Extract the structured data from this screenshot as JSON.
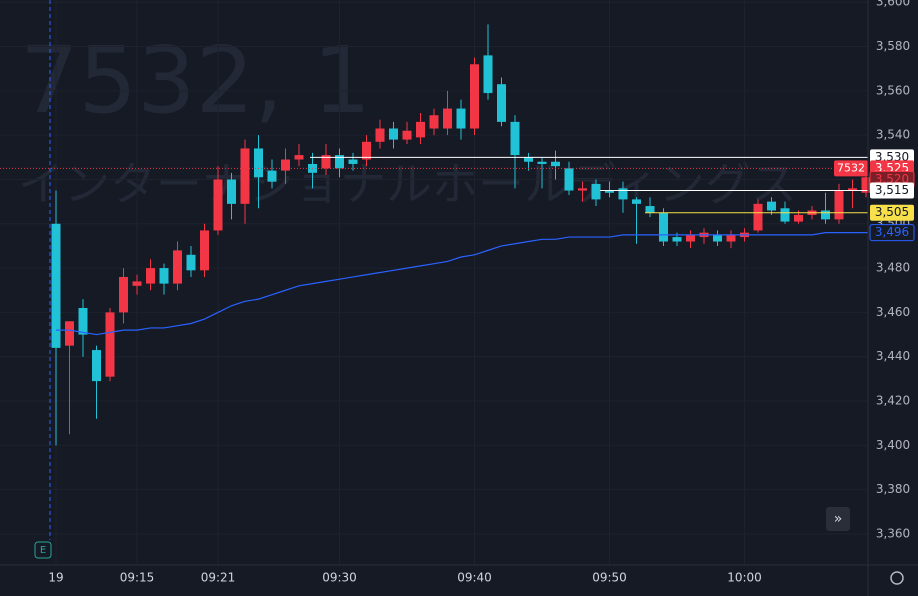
{
  "chart_data": {
    "type": "candlestick",
    "watermark": {
      "symbol": "7532, 1",
      "name": "インターナショナルホールディングス"
    },
    "categories": [
      "19",
      null,
      null,
      null,
      null,
      null,
      "09:15",
      null,
      null,
      null,
      null,
      null,
      "09:21",
      null,
      null,
      null,
      null,
      null,
      null,
      null,
      null,
      "09:30",
      null,
      null,
      null,
      null,
      null,
      null,
      null,
      null,
      null,
      "09:40",
      null,
      null,
      null,
      null,
      null,
      null,
      null,
      null,
      null,
      "09:50",
      null,
      null,
      null,
      null,
      null,
      null,
      null,
      null,
      null,
      "10:00",
      null,
      null,
      null,
      null,
      null,
      null,
      null,
      null,
      null
    ],
    "open": [
      3500,
      3445,
      3462,
      3443,
      3431,
      3460,
      3472,
      3473,
      3480,
      3473,
      3486,
      3479,
      3497,
      3520,
      3509,
      3534,
      3524,
      3524,
      3529,
      3527,
      3525,
      3531,
      3529,
      3529,
      3537,
      3543,
      3538,
      3539,
      3543,
      3543,
      3552,
      3543,
      3576,
      3563,
      3546,
      3530,
      3528,
      3528,
      3525,
      3515,
      3518,
      3515,
      3516,
      3511,
      3508,
      3505,
      3494,
      3492,
      3494,
      3495,
      3492,
      3494,
      3497,
      3510,
      3507,
      3501,
      3504,
      3506,
      3502,
      3515,
      3514
    ],
    "high": [
      3515,
      3456,
      3466,
      3445,
      3462,
      3480,
      3477,
      3484,
      3482,
      3492,
      3490,
      3500,
      3526,
      3523,
      3538,
      3540,
      3529,
      3534,
      3536,
      3532,
      3536,
      3534,
      3532,
      3540,
      3547,
      3546,
      3546,
      3550,
      3552,
      3560,
      3556,
      3575,
      3590,
      3566,
      3549,
      3532,
      3530,
      3533,
      3528,
      3519,
      3520,
      3519,
      3519,
      3512,
      3512,
      3507,
      3496,
      3497,
      3498,
      3497,
      3497,
      3498,
      3511,
      3512,
      3510,
      3506,
      3508,
      3514,
      3518,
      3520,
      3525
    ],
    "low": [
      3400,
      3405,
      3440,
      3412,
      3429,
      3455,
      3468,
      3470,
      3468,
      3470,
      3476,
      3476,
      3495,
      3502,
      3500,
      3507,
      3516,
      3518,
      3526,
      3516,
      3522,
      3521,
      3524,
      3526,
      3534,
      3534,
      3536,
      3536,
      3540,
      3540,
      3538,
      3540,
      3556,
      3544,
      3516,
      3524,
      3516,
      3520,
      3513,
      3510,
      3508,
      3512,
      3505,
      3491,
      3503,
      3490,
      3490,
      3489,
      3491,
      3490,
      3489,
      3492,
      3496,
      3504,
      3500,
      3500,
      3502,
      3500,
      3500,
      3507,
      3512
    ],
    "close": [
      3444,
      3456,
      3450,
      3429,
      3460,
      3476,
      3474,
      3480,
      3473,
      3488,
      3479,
      3497,
      3520,
      3509,
      3534,
      3521,
      3519,
      3529,
      3531,
      3523,
      3531,
      3525,
      3527,
      3537,
      3543,
      3538,
      3542,
      3546,
      3549,
      3552,
      3543,
      3572,
      3559,
      3546,
      3531,
      3528,
      3527,
      3526,
      3515,
      3516,
      3511,
      3514,
      3511,
      3509,
      3505,
      3492,
      3492,
      3495,
      3496,
      3492,
      3495,
      3496,
      3509,
      3506,
      3501,
      3504,
      3506,
      3502,
      3515,
      3516,
      3521
    ],
    "up_color": "#f23645",
    "down_color": "#22c2d6",
    "lines": [
      {
        "color": "#2962ff",
        "values": [
          3452,
          3452,
          3451,
          3450,
          3451,
          3452,
          3452,
          3453,
          3453,
          3454,
          3455,
          3457,
          3460,
          3463,
          3465,
          3466,
          3468,
          3470,
          3472,
          3473,
          3474,
          3475,
          3476,
          3477,
          3478,
          3479,
          3480,
          3481,
          3482,
          3483,
          3485,
          3486,
          3488,
          3490,
          3491,
          3492,
          3493,
          3493,
          3494,
          3494,
          3494,
          3494,
          3495,
          3495,
          3495,
          3495,
          3495,
          3495,
          3495,
          3495,
          3495,
          3495,
          3495,
          3495,
          3495,
          3495,
          3495,
          3496,
          3496,
          3496,
          3496
        ]
      }
    ],
    "symbol_tag": "7532",
    "price_labels": [
      {
        "value": 3530,
        "label": "3,530",
        "color": "#ffffff",
        "text_color": "#131722",
        "style": "solid"
      },
      {
        "value": 3525,
        "label": "3,525",
        "color": "#f23645",
        "text_color": "#ffffff",
        "style": "dotted"
      },
      {
        "value": 3520,
        "label": "3,520",
        "color": "#7a1f28",
        "text_color": "#f23645",
        "style": "none"
      },
      {
        "value": 3515,
        "label": "3,515",
        "color": "#ffffff",
        "text_color": "#131722",
        "style": "solid"
      },
      {
        "value": 3505,
        "label": "3,505",
        "color": "#f7e04a",
        "text_color": "#131722",
        "style": "solid"
      },
      {
        "value": 3496,
        "label": "3,496",
        "color": "#161a25",
        "text_color": "#2962ff",
        "style": "none"
      }
    ],
    "ylim": [
      3346,
      3601
    ],
    "yticks": [
      {
        "value": 3360,
        "label": "3,360"
      },
      {
        "value": 3380,
        "label": "3,380"
      },
      {
        "value": 3400,
        "label": "3,400"
      },
      {
        "value": 3420,
        "label": "3,420"
      },
      {
        "value": 3440,
        "label": "3,440"
      },
      {
        "value": 3460,
        "label": "3,460"
      },
      {
        "value": 3480,
        "label": "3,480"
      },
      {
        "value": 3500,
        "label": "3,500"
      },
      {
        "value": 3520,
        "label": "3,520"
      },
      {
        "value": 3540,
        "label": "3,540"
      },
      {
        "value": 3560,
        "label": "3,560"
      },
      {
        "value": 3580,
        "label": "3,580"
      },
      {
        "value": 3600,
        "label": "3,600"
      }
    ],
    "grid": true
  }
}
